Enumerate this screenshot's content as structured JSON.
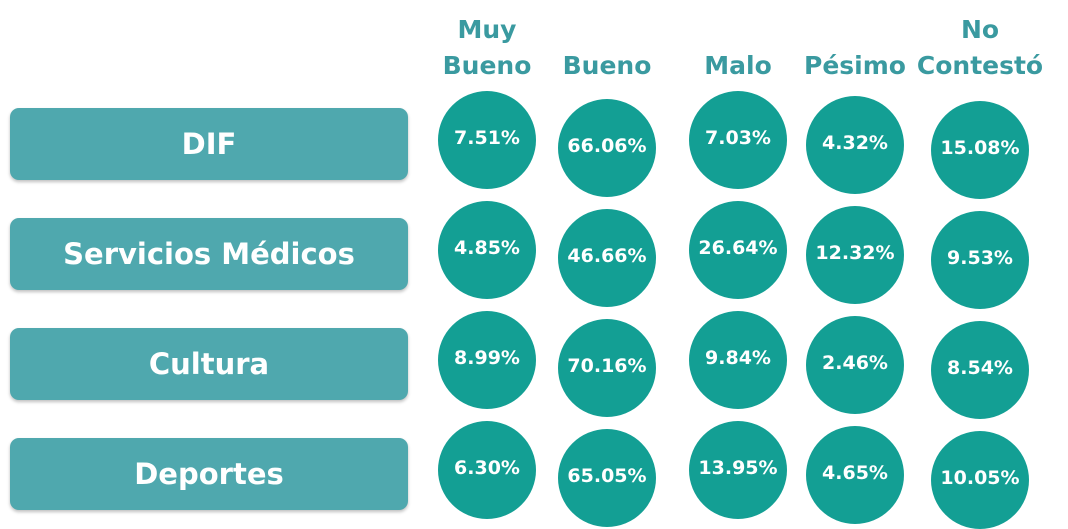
{
  "table": {
    "columns": [
      [
        "Muy",
        "Bueno"
      ],
      [
        "Bueno"
      ],
      [
        "Malo"
      ],
      [
        "Pésimo"
      ],
      [
        "No",
        "Contestó"
      ]
    ],
    "rows": [
      {
        "label": "DIF",
        "cells": [
          "7.51%",
          "66.06%",
          "7.03%",
          "4.32%",
          "15.08%"
        ]
      },
      {
        "label": "Servicios Médicos",
        "cells": [
          "4.85%",
          "46.66%",
          "26.64%",
          "12.32%",
          "9.53%"
        ]
      },
      {
        "label": "Cultura",
        "cells": [
          "8.99%",
          "70.16%",
          "9.84%",
          "2.46%",
          "8.54%"
        ]
      },
      {
        "label": "Deportes",
        "cells": [
          "6.30%",
          "65.05%",
          "13.95%",
          "4.65%",
          "10.05%"
        ]
      }
    ]
  }
}
